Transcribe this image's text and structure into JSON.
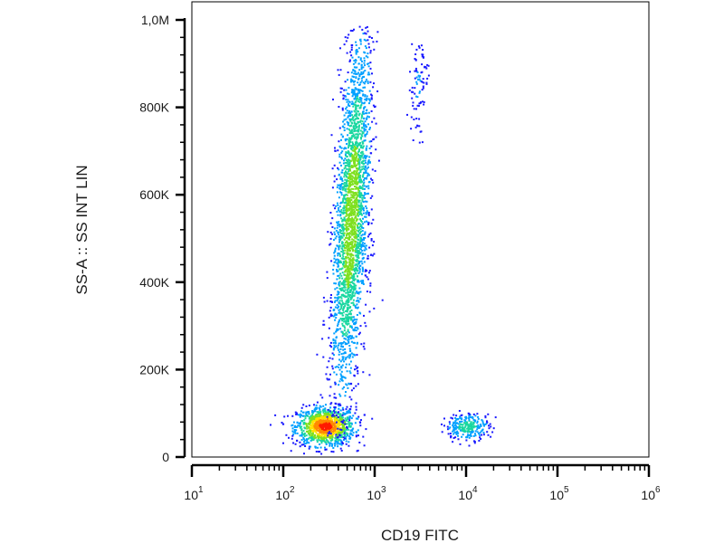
{
  "chart_data": {
    "type": "scatter",
    "style": "density-dot-plot",
    "xlabel": "CD19 FITC",
    "ylabel": "SS-A :: SS INT LIN",
    "xscale": "log",
    "xlim": [
      10,
      1000000
    ],
    "ylim": [
      0,
      1000000
    ],
    "x_tick_labels": [
      {
        "value": 10,
        "base": "10",
        "exp": "1"
      },
      {
        "value": 100,
        "base": "10",
        "exp": "2"
      },
      {
        "value": 1000,
        "base": "10",
        "exp": "3"
      },
      {
        "value": 10000,
        "base": "10",
        "exp": "4"
      },
      {
        "value": 100000,
        "base": "10",
        "exp": "5"
      },
      {
        "value": 1000000,
        "base": "10",
        "exp": "6"
      }
    ],
    "y_tick_labels": [
      {
        "value": 0,
        "label": "0"
      },
      {
        "value": 200000,
        "label": "200K"
      },
      {
        "value": 400000,
        "label": "400K"
      },
      {
        "value": 600000,
        "label": "600K"
      },
      {
        "value": 800000,
        "label": "800K"
      },
      {
        "value": 1000000,
        "label": "1,0M"
      }
    ],
    "colormap": [
      "#1a1aff",
      "#00a0ff",
      "#19d7a0",
      "#7fe020",
      "#ffe000",
      "#ff8a00",
      "#ff1a00"
    ],
    "grid": false,
    "populations": [
      {
        "x_center": 290,
        "y_center": 70000,
        "x_spread": 0.16,
        "y_spread": 22000,
        "count": 1100,
        "peak_density": 1.0
      },
      {
        "x_center": 560,
        "y_center": 550000,
        "x_spread": 0.09,
        "y_spread": 210000,
        "count": 2600,
        "peak_density": 0.55
      },
      {
        "x_center": 10500,
        "y_center": 70000,
        "x_spread": 0.12,
        "y_spread": 15000,
        "count": 260,
        "peak_density": 0.35
      },
      {
        "x_center": 3000,
        "y_center": 850000,
        "x_spread": 0.05,
        "y_spread": 60000,
        "count": 90,
        "peak_density": 0.1
      }
    ]
  }
}
